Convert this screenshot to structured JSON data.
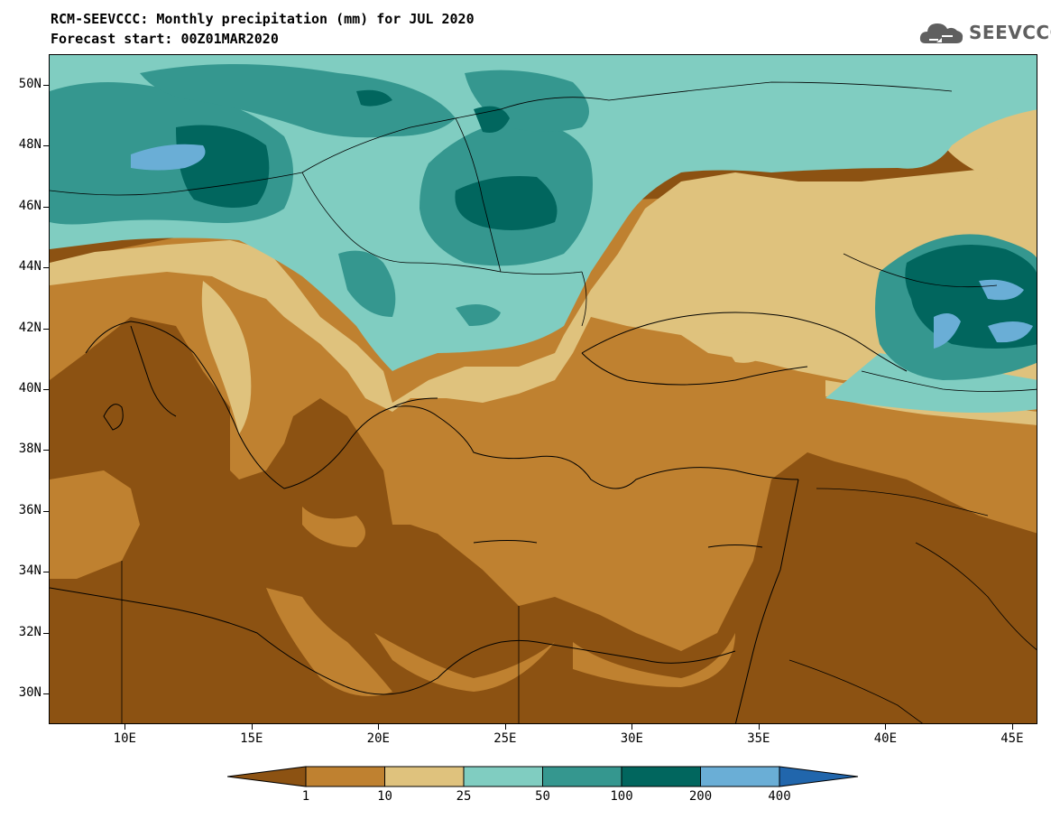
{
  "header": {
    "title_line1": "RCM-SEEVCCC: Monthly precipitation (mm) for JUL 2020",
    "title_line2": "Forecast start: 00Z01MAR2020"
  },
  "logo": {
    "text": "SEEVCCC",
    "icon": "cloud-icon"
  },
  "map": {
    "lon_range": [
      7,
      46
    ],
    "lat_range": [
      29,
      51
    ],
    "lat_ticks": [
      "50N",
      "48N",
      "46N",
      "44N",
      "42N",
      "40N",
      "38N",
      "36N",
      "34N",
      "32N",
      "30N"
    ],
    "lon_ticks": [
      "10E",
      "15E",
      "20E",
      "25E",
      "30E",
      "35E",
      "40E",
      "45E"
    ],
    "lat_tick_values": [
      50,
      48,
      46,
      44,
      42,
      40,
      38,
      36,
      34,
      32,
      30
    ],
    "lon_tick_values": [
      10,
      15,
      20,
      25,
      30,
      35,
      40,
      45
    ]
  },
  "legend": {
    "unit": "mm",
    "thresholds": [
      "1",
      "10",
      "25",
      "50",
      "100",
      "200",
      "400"
    ],
    "colors": [
      "#8c5212",
      "#bf8130",
      "#dfc27d",
      "#80cdc1",
      "#35978f",
      "#01665e",
      "#6aaed6",
      "#2166ac"
    ]
  }
}
